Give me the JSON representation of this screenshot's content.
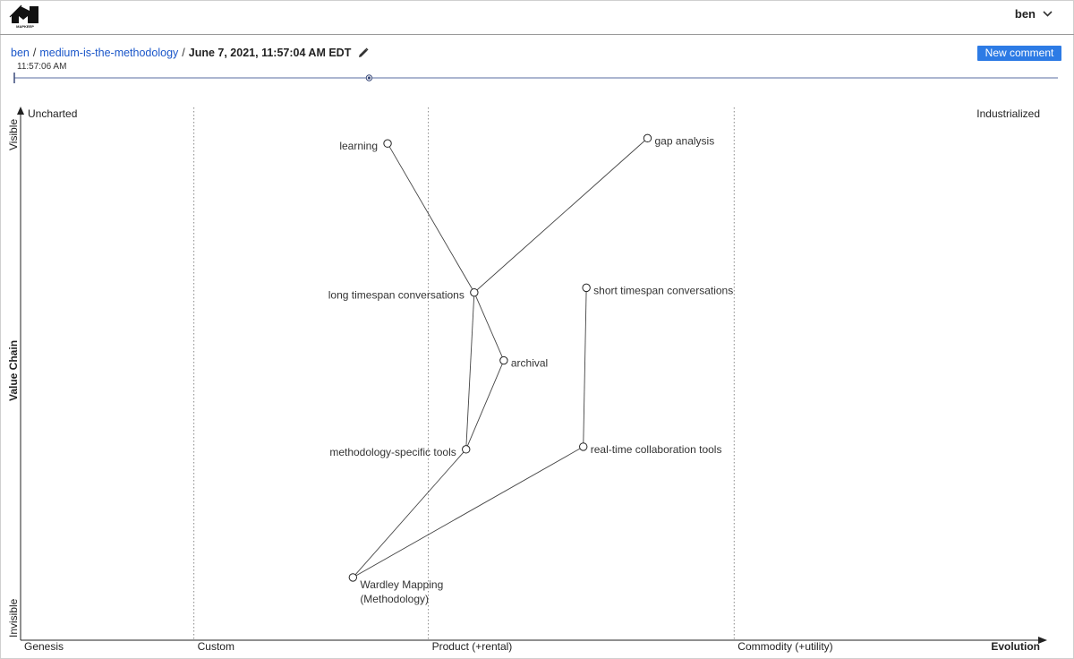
{
  "header": {
    "logo_text": "MAPKEEP",
    "user_name": "ben"
  },
  "breadcrumb": {
    "user": "ben",
    "map": "medium-is-the-methodology",
    "version": "June 7, 2021, 11:57:04 AM EDT"
  },
  "new_comment_label": "New comment",
  "timeline": {
    "time_label": "11:57:06 AM",
    "position": 0.34
  },
  "map": {
    "y_axis": {
      "label": "Value Chain",
      "top": "Visible",
      "bottom": "Invisible"
    },
    "x_axis": {
      "label": "Evolution"
    },
    "corner_top_left": "Uncharted",
    "corner_top_right": "Industrialized",
    "stages": [
      {
        "label": "Genesis",
        "start": 0.0
      },
      {
        "label": "Custom",
        "start": 0.17
      },
      {
        "label": "Product (+rental)",
        "start": 0.4
      },
      {
        "label": "Commodity (+utility)",
        "start": 0.7
      }
    ],
    "components": [
      {
        "id": "learning",
        "label": [
          "learning"
        ],
        "evolution": 0.36,
        "visibility": 0.95,
        "label_side": "left"
      },
      {
        "id": "gap",
        "label": [
          "gap analysis"
        ],
        "evolution": 0.615,
        "visibility": 0.96,
        "label_side": "right"
      },
      {
        "id": "longts",
        "label": [
          "long timespan conversations"
        ],
        "evolution": 0.445,
        "visibility": 0.665,
        "label_side": "left"
      },
      {
        "id": "shortts",
        "label": [
          "short timespan conversations"
        ],
        "evolution": 0.555,
        "visibility": 0.674,
        "label_side": "right"
      },
      {
        "id": "archival",
        "label": [
          "archival"
        ],
        "evolution": 0.474,
        "visibility": 0.535,
        "label_side": "right"
      },
      {
        "id": "methtools",
        "label": [
          "methodology-specific tools"
        ],
        "evolution": 0.437,
        "visibility": 0.365,
        "label_side": "left"
      },
      {
        "id": "rtcollab",
        "label": [
          "real-time collaboration tools"
        ],
        "evolution": 0.552,
        "visibility": 0.37,
        "label_side": "right"
      },
      {
        "id": "wardley",
        "label": [
          "Wardley Mapping",
          "(Methodology)"
        ],
        "evolution": 0.326,
        "visibility": 0.12,
        "label_side": "below-right"
      }
    ],
    "links": [
      [
        "longts",
        "learning"
      ],
      [
        "longts",
        "gap"
      ],
      [
        "longts",
        "archival"
      ],
      [
        "longts",
        "methtools"
      ],
      [
        "archival",
        "methtools"
      ],
      [
        "methtools",
        "wardley"
      ],
      [
        "rtcollab",
        "wardley"
      ],
      [
        "shortts",
        "rtcollab"
      ]
    ]
  }
}
